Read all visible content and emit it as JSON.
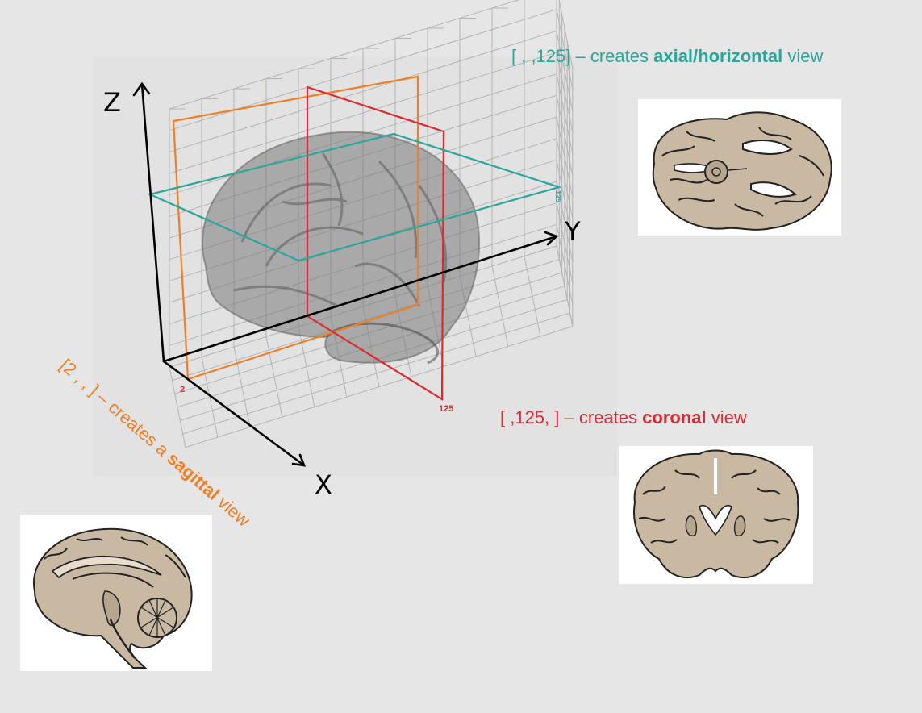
{
  "axes": {
    "x": "X",
    "y": "Y",
    "z": "Z"
  },
  "slice_marks": {
    "sagittal": "2",
    "coronal": "125",
    "axial": "125"
  },
  "captions": {
    "axial": {
      "prefix": "[ , ,125] – creates ",
      "bold": "axial/horizontal",
      "suffix": " view"
    },
    "coronal": {
      "prefix": "[ ,125, ] – creates ",
      "bold": "coronal",
      "suffix": " view"
    },
    "sagittal": {
      "prefix": "[2 , , ] – creates a ",
      "bold": "sagittal",
      "suffix": " view"
    }
  },
  "colors": {
    "background": "#e6e6e6",
    "axial": "#2aa69c",
    "coronal": "#dc2a32",
    "sagittal": "#ee7f24",
    "brain_tissue": "#c9b9a3",
    "grid": "#b4b4b4"
  },
  "icons": [
    "brain-volume-image",
    "axial-brain-slice-image",
    "coronal-brain-slice-image",
    "sagittal-brain-slice-image"
  ]
}
